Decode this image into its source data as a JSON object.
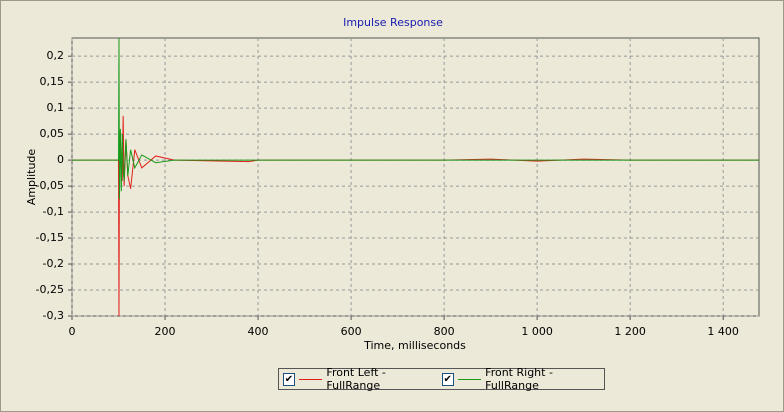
{
  "chart_data": {
    "type": "line",
    "title": "Impulse Response",
    "x_label": "Time, milliseconds",
    "y_label": "Amplitude",
    "x": [
      0,
      40,
      100,
      101,
      102,
      104,
      106,
      108,
      110,
      112,
      116,
      120,
      126,
      135,
      150,
      180,
      220,
      380,
      400,
      800,
      900,
      1000,
      1100,
      1200,
      1477
    ],
    "series": [
      {
        "name": "Front Left - FullRange",
        "color": "#e0201a",
        "values": [
          0,
          0,
          0,
          -0.3,
          0.02,
          0.05,
          -0.03,
          -0.04,
          0.085,
          -0.05,
          0.04,
          -0.03,
          -0.055,
          0.02,
          -0.015,
          0.008,
          0,
          -0.003,
          0,
          0,
          0.002,
          -0.002,
          0.002,
          0,
          0
        ]
      },
      {
        "name": "Front Right - FullRange",
        "color": "#1a9a1a",
        "values": [
          0,
          0,
          0,
          0.235,
          -0.075,
          0.06,
          -0.06,
          0.05,
          -0.02,
          -0.04,
          0.04,
          -0.03,
          0.02,
          -0.015,
          0.01,
          -0.005,
          0,
          0,
          0,
          0,
          0,
          0,
          0,
          0,
          0
        ]
      }
    ],
    "xlim": [
      0,
      1477
    ],
    "ylim": [
      -0.3,
      0.235
    ],
    "xticks": [
      0,
      200,
      400,
      600,
      800,
      {
        "value": 1000,
        "label": "1 000"
      },
      {
        "value": 1200,
        "label": "1 200"
      },
      {
        "value": 1400,
        "label": "1 400"
      }
    ],
    "yticks": [
      {
        "value": 0.2,
        "label": "0,2"
      },
      {
        "value": 0.15,
        "label": "0,15"
      },
      {
        "value": 0.1,
        "label": "0,1"
      },
      {
        "value": 0.05,
        "label": "0,05"
      },
      0,
      {
        "value": -0.05,
        "label": "-0,05"
      },
      {
        "value": -0.1,
        "label": "-0,1"
      },
      {
        "value": -0.15,
        "label": "-0,15"
      },
      {
        "value": -0.2,
        "label": "-0,2"
      },
      {
        "value": -0.25,
        "label": "-0,25"
      },
      {
        "value": -0.3,
        "label": "-0,3"
      }
    ],
    "grid": true
  }
}
